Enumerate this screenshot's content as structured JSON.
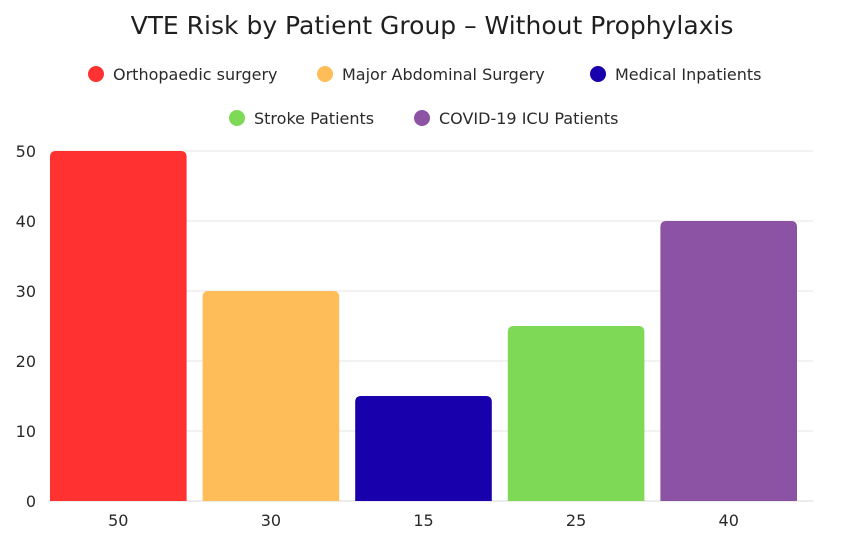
{
  "chart_data": {
    "type": "bar",
    "title": "VTE Risk by Patient Group – Without Prophylaxis",
    "xlabel": "",
    "ylabel": "",
    "categories": [
      "Orthopaedic surgery",
      "Major Abdominal Surgery",
      "Medical Inpatients",
      "Stroke Patients",
      "COVID-19 ICU Patients"
    ],
    "values": [
      50,
      30,
      15,
      25,
      40
    ],
    "x_tick_labels": [
      "50",
      "30",
      "15",
      "25",
      "40"
    ],
    "colors": [
      "#ff3131",
      "#ffbd59",
      "#1800ad",
      "#7ed957",
      "#8c52a3"
    ],
    "ylim": [
      0,
      50
    ],
    "yticks": [
      0,
      10,
      20,
      30,
      40,
      50
    ],
    "grid": true,
    "legend": {
      "position": "top",
      "entries": [
        {
          "label": "Orthopaedic surgery",
          "color": "#ff3131"
        },
        {
          "label": "Major Abdominal Surgery",
          "color": "#ffbd59"
        },
        {
          "label": "Medical Inpatients",
          "color": "#1800ad"
        },
        {
          "label": "Stroke Patients",
          "color": "#7ed957"
        },
        {
          "label": "COVID-19 ICU Patients",
          "color": "#8c52a3"
        }
      ]
    }
  }
}
